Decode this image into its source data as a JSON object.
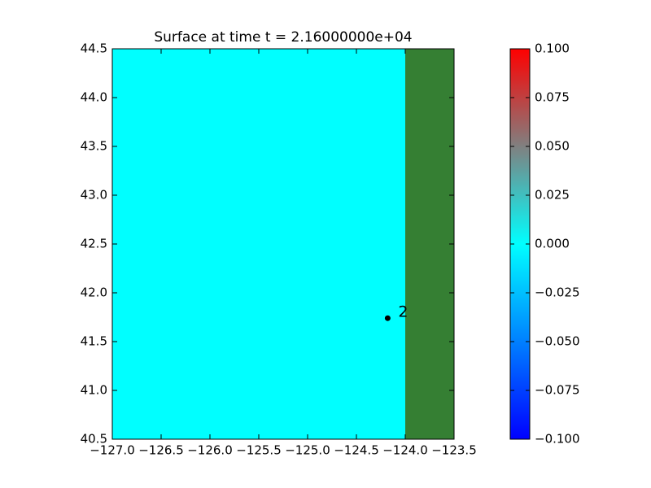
{
  "chart_data": {
    "type": "map",
    "title": "Surface at time t = 2.16000000e+04",
    "xlim": [
      -127,
      -123.5
    ],
    "ylim": [
      40.5,
      44.5
    ],
    "xticks": [
      {
        "value": -127,
        "label": "−127.0"
      },
      {
        "value": -126.5,
        "label": "−126.5"
      },
      {
        "value": -126,
        "label": "−126.0"
      },
      {
        "value": -125.5,
        "label": "−125.5"
      },
      {
        "value": -125,
        "label": "−125.0"
      },
      {
        "value": -124.5,
        "label": "−124.5"
      },
      {
        "value": -124,
        "label": "−124.0"
      },
      {
        "value": -123.5,
        "label": "−123.5"
      }
    ],
    "yticks": [
      40.5,
      {
        "value": 41,
        "label": "41.0"
      },
      41.5,
      {
        "value": 42,
        "label": "42.0"
      },
      42.5,
      {
        "value": 43,
        "label": "43.0"
      },
      43.5,
      {
        "value": 44,
        "label": "44.0"
      },
      44.5
    ],
    "regions": [
      {
        "xlim": [
          -127,
          -124
        ],
        "color": "#00ffff"
      },
      {
        "xlim": [
          -124,
          -123.5
        ],
        "color": "#357f33"
      }
    ],
    "gauges": [
      {
        "label": "2",
        "x": -124.18,
        "y": 41.74
      }
    ],
    "colorbar": {
      "lim": [
        -0.1,
        0.1
      ],
      "ticks": [
        {
          "value": -0.1,
          "label": "−0.100"
        },
        {
          "value": -0.075,
          "label": "−0.075"
        },
        {
          "value": -0.05,
          "label": "−0.050"
        },
        {
          "value": -0.025,
          "label": "−0.025"
        },
        {
          "value": 0,
          "label": "0.000"
        },
        {
          "value": 0.025,
          "label": "0.025"
        },
        {
          "value": 0.05,
          "label": "0.050"
        },
        {
          "value": 0.075,
          "label": "0.075"
        },
        {
          "value": 0.1,
          "label": "0.100"
        }
      ],
      "colors": [
        "#0000ff",
        "#0080ff",
        "#00ffff",
        "#808080",
        "#ff0000"
      ]
    }
  }
}
